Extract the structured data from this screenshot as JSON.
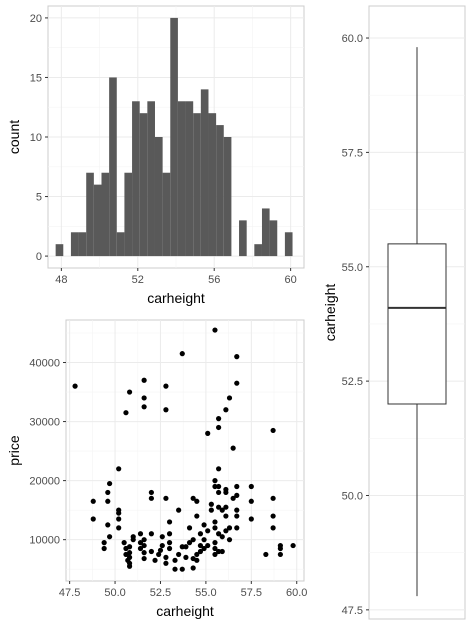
{
  "chart_data": [
    {
      "type": "histogram",
      "xlabel": "carheight",
      "ylabel": "count",
      "xlim": [
        47.3,
        60.7
      ],
      "ylim": [
        -1,
        21
      ],
      "x_ticks": [
        48,
        52,
        56,
        60
      ],
      "y_ticks": [
        0,
        5,
        10,
        15,
        20
      ],
      "bin_width": 0.4,
      "bins": [
        {
          "x": 47.9,
          "count": 1
        },
        {
          "x": 48.7,
          "count": 2
        },
        {
          "x": 49.1,
          "count": 2
        },
        {
          "x": 49.5,
          "count": 7
        },
        {
          "x": 49.9,
          "count": 6
        },
        {
          "x": 50.3,
          "count": 7
        },
        {
          "x": 50.7,
          "count": 15
        },
        {
          "x": 51.1,
          "count": 2
        },
        {
          "x": 51.5,
          "count": 7
        },
        {
          "x": 51.9,
          "count": 13
        },
        {
          "x": 52.3,
          "count": 12
        },
        {
          "x": 52.7,
          "count": 13
        },
        {
          "x": 53.1,
          "count": 10
        },
        {
          "x": 53.5,
          "count": 7
        },
        {
          "x": 53.9,
          "count": 20
        },
        {
          "x": 54.3,
          "count": 13
        },
        {
          "x": 54.7,
          "count": 13
        },
        {
          "x": 55.1,
          "count": 12
        },
        {
          "x": 55.5,
          "count": 14
        },
        {
          "x": 55.9,
          "count": 12
        },
        {
          "x": 56.3,
          "count": 11
        },
        {
          "x": 56.7,
          "count": 10
        },
        {
          "x": 57.5,
          "count": 3
        },
        {
          "x": 58.3,
          "count": 1
        },
        {
          "x": 58.7,
          "count": 4
        },
        {
          "x": 59.1,
          "count": 3
        },
        {
          "x": 59.9,
          "count": 2
        }
      ]
    },
    {
      "type": "scatter",
      "xlabel": "carheight",
      "ylabel": "price",
      "xlim": [
        47.3,
        60.4
      ],
      "ylim": [
        3000,
        47200
      ],
      "x_ticks": [
        47.5,
        50.0,
        52.5,
        55.0,
        57.5,
        60.0
      ],
      "x_tick_labels": [
        "47.5",
        "50.0",
        "52.5",
        "55.0",
        "57.5",
        "60.0"
      ],
      "y_ticks": [
        10000,
        20000,
        30000,
        40000
      ],
      "points": [
        [
          47.8,
          36000
        ],
        [
          48.8,
          16500
        ],
        [
          48.8,
          13500
        ],
        [
          49.4,
          8500
        ],
        [
          49.4,
          9500
        ],
        [
          49.6,
          18000
        ],
        [
          49.6,
          16500
        ],
        [
          49.7,
          19500
        ],
        [
          49.6,
          12500
        ],
        [
          49.7,
          10500
        ],
        [
          50.2,
          22000
        ],
        [
          50.2,
          14500
        ],
        [
          50.2,
          15000
        ],
        [
          50.2,
          13500
        ],
        [
          50.2,
          12000
        ],
        [
          50.5,
          9500
        ],
        [
          50.6,
          31500
        ],
        [
          50.6,
          7500
        ],
        [
          50.6,
          8500
        ],
        [
          50.7,
          6500
        ],
        [
          50.8,
          35000
        ],
        [
          50.8,
          5500
        ],
        [
          50.8,
          6000
        ],
        [
          50.8,
          7000
        ],
        [
          50.8,
          7800
        ],
        [
          50.8,
          8800
        ],
        [
          51.0,
          10000
        ],
        [
          51.0,
          10500
        ],
        [
          51.4,
          11000
        ],
        [
          51.4,
          9500
        ],
        [
          51.4,
          8500
        ],
        [
          51.6,
          37000
        ],
        [
          51.6,
          34000
        ],
        [
          51.6,
          32500
        ],
        [
          51.6,
          7800
        ],
        [
          51.6,
          6800
        ],
        [
          51.6,
          9000
        ],
        [
          51.6,
          10000
        ],
        [
          52.0,
          11000
        ],
        [
          52.0,
          8000
        ],
        [
          52.0,
          18000
        ],
        [
          52.0,
          17000
        ],
        [
          52.2,
          6500
        ],
        [
          52.4,
          7500
        ],
        [
          52.5,
          8200
        ],
        [
          52.6,
          9000
        ],
        [
          52.6,
          10500
        ],
        [
          52.8,
          36000
        ],
        [
          52.8,
          32000
        ],
        [
          52.8,
          17000
        ],
        [
          52.8,
          6000
        ],
        [
          52.8,
          7000
        ],
        [
          53.0,
          8500
        ],
        [
          53.0,
          9500
        ],
        [
          53.0,
          11000
        ],
        [
          53.0,
          13000
        ],
        [
          53.3,
          5000
        ],
        [
          53.3,
          6500
        ],
        [
          53.5,
          7500
        ],
        [
          53.5,
          15000
        ],
        [
          53.7,
          8800
        ],
        [
          53.7,
          41500
        ],
        [
          53.7,
          5000
        ],
        [
          53.9,
          7000
        ],
        [
          53.9,
          8800
        ],
        [
          54.1,
          9500
        ],
        [
          54.1,
          12000
        ],
        [
          54.3,
          5200
        ],
        [
          54.3,
          6800
        ],
        [
          54.3,
          10000
        ],
        [
          54.3,
          17000
        ],
        [
          54.5,
          6500
        ],
        [
          54.5,
          7500
        ],
        [
          54.5,
          16500
        ],
        [
          54.5,
          14000
        ],
        [
          54.7,
          8000
        ],
        [
          54.7,
          9000
        ],
        [
          54.7,
          11000
        ],
        [
          54.9,
          8500
        ],
        [
          54.9,
          10000
        ],
        [
          54.9,
          12500
        ],
        [
          55.1,
          9000
        ],
        [
          55.1,
          11500
        ],
        [
          55.1,
          28000
        ],
        [
          55.3,
          16000
        ],
        [
          55.3,
          15000
        ],
        [
          55.5,
          7500
        ],
        [
          55.5,
          8500
        ],
        [
          55.5,
          9500
        ],
        [
          55.5,
          12000
        ],
        [
          55.5,
          13000
        ],
        [
          55.5,
          19000
        ],
        [
          55.5,
          20000
        ],
        [
          55.5,
          45500
        ],
        [
          55.7,
          8000
        ],
        [
          55.7,
          11000
        ],
        [
          55.7,
          15500
        ],
        [
          55.7,
          18000
        ],
        [
          55.7,
          19000
        ],
        [
          55.7,
          22000
        ],
        [
          55.7,
          30500
        ],
        [
          55.7,
          29000
        ],
        [
          55.9,
          15000
        ],
        [
          55.9,
          10500
        ],
        [
          55.9,
          8000
        ],
        [
          56.1,
          14000
        ],
        [
          56.1,
          15500
        ],
        [
          56.1,
          11500
        ],
        [
          56.1,
          18500
        ],
        [
          56.1,
          32000
        ],
        [
          56.1,
          18000
        ],
        [
          56.3,
          34000
        ],
        [
          56.3,
          10000
        ],
        [
          56.3,
          12000
        ],
        [
          56.5,
          25500
        ],
        [
          56.5,
          17000
        ],
        [
          56.7,
          41000
        ],
        [
          56.7,
          36500
        ],
        [
          56.7,
          19000
        ],
        [
          56.7,
          17500
        ],
        [
          56.7,
          15000
        ],
        [
          56.7,
          14000
        ],
        [
          56.7,
          12000
        ],
        [
          57.5,
          19000
        ],
        [
          57.5,
          16500
        ],
        [
          57.5,
          13500
        ],
        [
          58.3,
          7500
        ],
        [
          58.7,
          28500
        ],
        [
          58.7,
          17000
        ],
        [
          58.7,
          14000
        ],
        [
          58.7,
          12000
        ],
        [
          59.1,
          7500
        ],
        [
          59.1,
          8500
        ],
        [
          59.1,
          9000
        ],
        [
          59.8,
          9000
        ]
      ]
    },
    {
      "type": "boxplot",
      "ylabel": "carheight",
      "ylim": [
        47.3,
        60.7
      ],
      "y_ticks": [
        47.5,
        50.0,
        52.5,
        55.0,
        57.5,
        60.0
      ],
      "y_tick_labels": [
        "47.5",
        "50.0",
        "52.5",
        "55.0",
        "57.5",
        "60.0"
      ],
      "stats": {
        "min": 47.8,
        "q1": 52.0,
        "median": 54.1,
        "q3": 55.5,
        "max": 59.8
      }
    }
  ]
}
